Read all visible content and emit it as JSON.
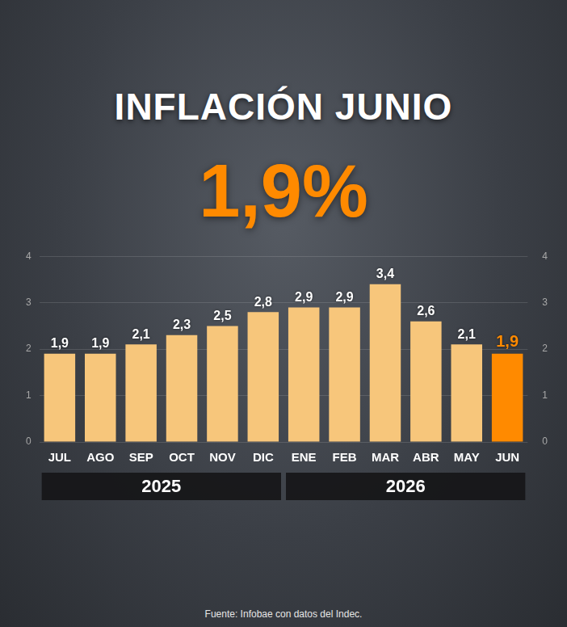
{
  "chart_data": {
    "type": "bar",
    "title": "INFLACIÓN JUNIO",
    "subtitle": "1,9%",
    "categories": [
      "JUL",
      "AGO",
      "SEP",
      "OCT",
      "NOV",
      "DIC",
      "ENE",
      "FEB",
      "MAR",
      "ABR",
      "MAY",
      "JUN"
    ],
    "values": [
      1.9,
      1.9,
      2.1,
      2.3,
      2.5,
      2.8,
      2.9,
      2.9,
      3.4,
      2.6,
      2.1,
      1.9
    ],
    "value_labels": [
      "1,9",
      "1,9",
      "2,1",
      "2,3",
      "2,5",
      "2,8",
      "2,9",
      "2,9",
      "3,4",
      "2,6",
      "2,1",
      "1,9"
    ],
    "colors": [
      "#f7c67b",
      "#f7c67b",
      "#f7c67b",
      "#f7c67b",
      "#f7c67b",
      "#f7c67b",
      "#f7c67b",
      "#f7c67b",
      "#f7c67b",
      "#f7c67b",
      "#f7c67b",
      "#ff8a00"
    ],
    "groups": [
      {
        "label": "2025",
        "categories": [
          "JUL",
          "AGO",
          "SEP",
          "OCT",
          "NOV",
          "DIC"
        ]
      },
      {
        "label": "2026",
        "categories": [
          "ENE",
          "FEB",
          "MAR",
          "ABR",
          "MAY",
          "JUN"
        ]
      }
    ],
    "ylim": [
      0,
      4
    ],
    "yticks": [
      0,
      1,
      2,
      3,
      4
    ],
    "y2lim": [
      0,
      4
    ],
    "y2ticks": [
      0,
      1,
      2,
      3,
      4
    ],
    "grid": true,
    "data_labels": true,
    "source": "Fuente: Infobae con datos del Indec."
  }
}
